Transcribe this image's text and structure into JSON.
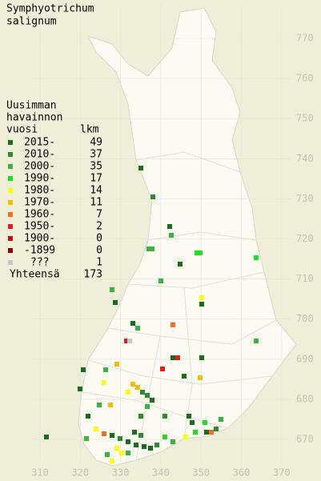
{
  "title": [
    "Symphyotrichum",
    "salignum"
  ],
  "legend": {
    "header": [
      "Uusimman",
      "havainnon",
      "vuosi"
    ],
    "count_header": "lkm",
    "rows": [
      {
        "label": "2015-",
        "count": 49,
        "color": "#1a6e1a"
      },
      {
        "label": "2010-",
        "count": 37,
        "color": "#2e8b2e"
      },
      {
        "label": "2000-",
        "count": 35,
        "color": "#3cb33c"
      },
      {
        "label": "1990-",
        "count": 17,
        "color": "#22dd22"
      },
      {
        "label": "1980-",
        "count": 14,
        "color": "#ffff00"
      },
      {
        "label": "1970-",
        "count": 11,
        "color": "#f0c000"
      },
      {
        "label": "1960-",
        "count": 7,
        "color": "#f07020"
      },
      {
        "label": "1950-",
        "count": 2,
        "color": "#e02020"
      },
      {
        "label": "1900-",
        "count": 0,
        "color": "#c01010"
      },
      {
        "label": "-1899",
        "count": 0,
        "color": "#8b0000"
      },
      {
        "label": "???",
        "count": 1,
        "color": "#c8c8c8"
      }
    ],
    "total_label": "Yhteensä",
    "total": 173
  },
  "x_axis_labels": [
    310,
    320,
    330,
    340,
    350,
    360,
    370
  ],
  "y_axis_labels": [
    670,
    680,
    690,
    700,
    710,
    720,
    730,
    740,
    750,
    760,
    770
  ]
}
